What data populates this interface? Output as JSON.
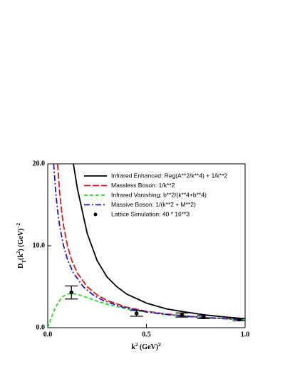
{
  "chart_data": {
    "type": "line",
    "x_label": [
      "k",
      "2",
      " (GeV)",
      "2"
    ],
    "y_label": [
      "D",
      "T",
      "(k",
      "2",
      ") (GeV)",
      "−2"
    ],
    "xlim": [
      0,
      1
    ],
    "ylim": [
      0,
      20
    ],
    "xticks": [
      {
        "value": 0,
        "label": "0.0"
      },
      {
        "value": 0.5,
        "label": "0.5"
      },
      {
        "value": 1,
        "label": "1.0"
      }
    ],
    "yticks": [
      {
        "value": 0,
        "label": "0.0"
      },
      {
        "value": 10,
        "label": "10.0"
      },
      {
        "value": 20,
        "label": "20.0"
      }
    ],
    "legend": "upper right",
    "series": [
      {
        "name": "Infrared Enhanced: Reg(A**2/k**4) + 1/k**2",
        "color": "#000000",
        "style": "solid",
        "x": [
          0.13,
          0.15,
          0.2,
          0.25,
          0.3,
          0.35,
          0.4,
          0.5,
          0.6,
          0.7,
          0.8,
          0.9,
          1.0
        ],
        "values": [
          20,
          17,
          11.5,
          8.2,
          6.2,
          5.0,
          4.1,
          3.0,
          2.3,
          1.9,
          1.55,
          1.3,
          1.1
        ]
      },
      {
        "name": "Massless Boson: 1/k**2",
        "color": "#e8141a",
        "style": "longdash",
        "x": [
          0.05,
          0.06,
          0.07,
          0.08,
          0.1,
          0.12,
          0.15,
          0.2,
          0.25,
          0.3,
          0.4,
          0.5,
          0.6,
          0.7,
          0.8,
          0.9,
          1.0
        ],
        "values": [
          20,
          16.67,
          14.29,
          12.5,
          10,
          8.33,
          6.67,
          5,
          4,
          3.33,
          2.5,
          2,
          1.67,
          1.43,
          1.25,
          1.11,
          1
        ]
      },
      {
        "name": "Infrared Vanishing: b**2/(k**4+b**4)",
        "color": "#22dd22",
        "style": "dash",
        "x": [
          0,
          0.02,
          0.04,
          0.06,
          0.08,
          0.1,
          0.12,
          0.15,
          0.2,
          0.25,
          0.3,
          0.4,
          0.5,
          0.6,
          0.7,
          0.8,
          0.9,
          1.0
        ],
        "values": [
          0,
          1.35,
          2.5,
          3.33,
          3.85,
          4.1,
          4.17,
          4.07,
          3.68,
          3.25,
          2.87,
          2.29,
          1.89,
          1.6,
          1.39,
          1.22,
          1.09,
          0.99
        ]
      },
      {
        "name": "Massive Boson: 1/(k**2 + M**2)",
        "color": "#1a1acc",
        "style": "dashdot",
        "x": [
          0.03,
          0.04,
          0.05,
          0.06,
          0.08,
          0.1,
          0.13,
          0.18,
          0.23,
          0.28,
          0.38,
          0.48,
          0.58,
          0.68,
          0.78,
          0.88,
          0.98,
          1.0
        ],
        "values": [
          20,
          16.67,
          14.29,
          12.5,
          10,
          8.33,
          6.67,
          5,
          4,
          3.33,
          2.5,
          2,
          1.67,
          1.43,
          1.25,
          1.11,
          1,
          0.98
        ]
      },
      {
        "name": "Lattice Simulation: 40 * 16**3",
        "color": "#000000",
        "style": "points",
        "x": [
          0.12,
          0.45,
          0.68,
          0.79,
          0.97
        ],
        "values": [
          4.3,
          1.75,
          1.55,
          1.3,
          1.0
        ],
        "errors": [
          0.8,
          0.35,
          0.25,
          0.2,
          0.15
        ]
      }
    ]
  }
}
